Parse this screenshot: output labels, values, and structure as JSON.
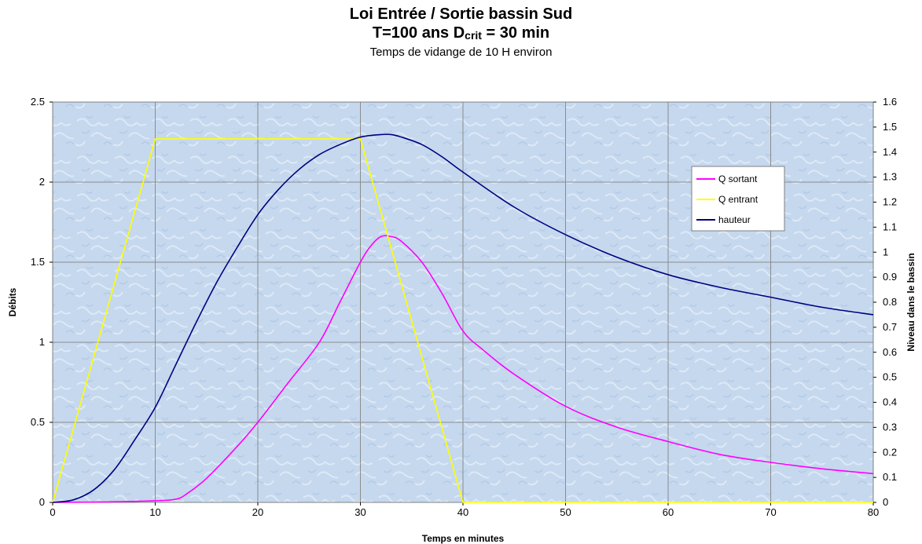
{
  "chart_data": {
    "type": "line",
    "title": "Loi Entrée / Sortie bassin Sud",
    "subtitle_main": "T=100 ans D",
    "subtitle_sub": "crit",
    "subtitle_end": " = 30 min",
    "subtitle2": "Temps de vidange de 10 H environ",
    "xlabel": "Temps en minutes",
    "ylabel": "Débits",
    "y2label": "Niveau dans le bassin",
    "xlim": [
      0,
      80
    ],
    "ylim": [
      0,
      2.5
    ],
    "y2lim": [
      0,
      1.6
    ],
    "xticks": [
      "0",
      "10",
      "20",
      "30",
      "40",
      "50",
      "60",
      "70",
      "80"
    ],
    "yticks": [
      "0",
      "0.5",
      "1",
      "1.5",
      "2",
      "2.5"
    ],
    "y2ticks": [
      "0",
      "0.1",
      "0.2",
      "0.3",
      "0.4",
      "0.5",
      "0.6",
      "0.7",
      "0.8",
      "0.9",
      "1",
      "1.1",
      "1.2",
      "1.3",
      "1.4",
      "1.5",
      "1.6"
    ],
    "grid": true,
    "legend_position": "top-right",
    "series": [
      {
        "name": "Q sortant",
        "axis": "left",
        "color": "#ff00ff",
        "x": [
          0,
          5,
          10,
          12,
          13,
          15,
          18,
          20,
          23,
          26,
          28,
          30,
          31,
          32,
          33,
          34,
          36,
          38,
          40,
          42,
          45,
          50,
          55,
          60,
          65,
          70,
          75,
          80
        ],
        "y": [
          0,
          0.003,
          0.01,
          0.02,
          0.05,
          0.15,
          0.35,
          0.5,
          0.75,
          1.0,
          1.25,
          1.5,
          1.6,
          1.66,
          1.66,
          1.63,
          1.5,
          1.3,
          1.07,
          0.95,
          0.8,
          0.6,
          0.47,
          0.38,
          0.3,
          0.25,
          0.21,
          0.18
        ]
      },
      {
        "name": "Q entrant",
        "axis": "left",
        "color": "#ffff00",
        "x": [
          0,
          10,
          30,
          40,
          80
        ],
        "y": [
          0,
          2.27,
          2.27,
          0,
          0
        ]
      },
      {
        "name": "hauteur",
        "axis": "right",
        "color": "#000080",
        "x": [
          0,
          2,
          4,
          6,
          8,
          10,
          12,
          14,
          16,
          18,
          20,
          22,
          24,
          26,
          28,
          30,
          32,
          33,
          34,
          36,
          38,
          40,
          45,
          50,
          55,
          60,
          65,
          70,
          75,
          80
        ],
        "y": [
          0,
          0.01,
          0.05,
          0.13,
          0.25,
          0.38,
          0.55,
          0.72,
          0.88,
          1.02,
          1.15,
          1.25,
          1.33,
          1.39,
          1.43,
          1.46,
          1.47,
          1.47,
          1.46,
          1.43,
          1.38,
          1.32,
          1.18,
          1.07,
          0.98,
          0.91,
          0.86,
          0.82,
          0.78,
          0.75
        ]
      }
    ]
  }
}
